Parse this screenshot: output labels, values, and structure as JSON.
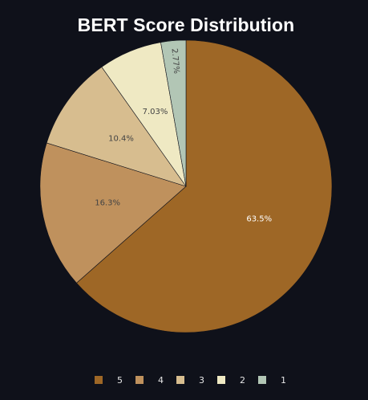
{
  "chart_data": {
    "type": "pie",
    "title": "BERT Score Distribution",
    "categories": [
      "5",
      "4",
      "3",
      "2",
      "1"
    ],
    "values": [
      63.5,
      16.3,
      10.4,
      7.03,
      2.77
    ],
    "labels": [
      "63.5%",
      "16.3%",
      "10.4%",
      "7.03%",
      "2.77%"
    ],
    "colors": [
      "#9e6726",
      "#bf915d",
      "#d7bd8f",
      "#efe9c3",
      "#b2c6b5"
    ],
    "label_colors": [
      "#ffffff",
      "#444444",
      "#444444",
      "#444444",
      "#444444"
    ],
    "legend_position": "bottom",
    "start_angle": "top",
    "direction": "clockwise"
  }
}
